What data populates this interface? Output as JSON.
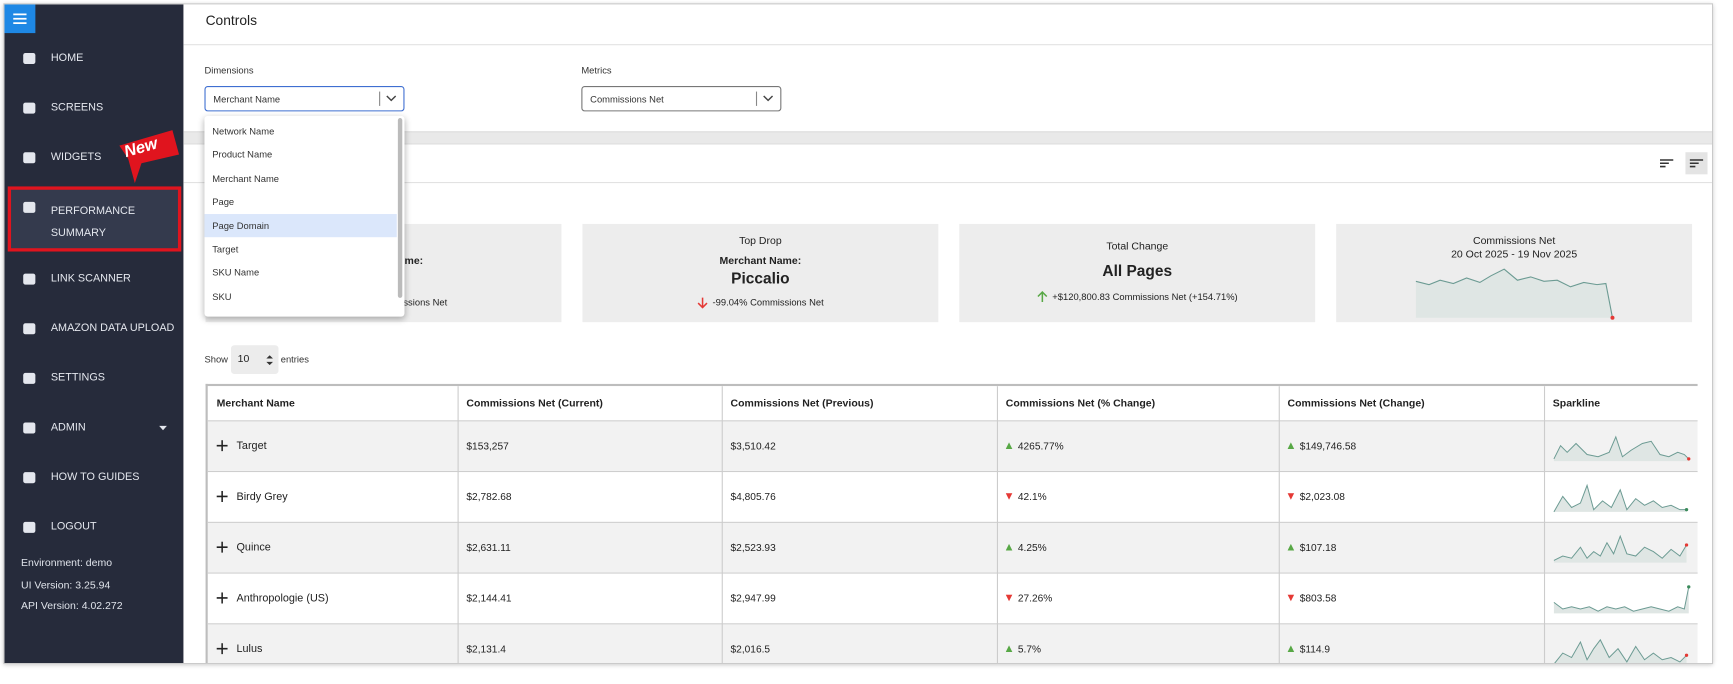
{
  "sidebar": {
    "menu": [
      "HOME",
      "SCREENS",
      "WIDGETS",
      "PERFORMANCE SUMMARY",
      "LINK SCANNER",
      "AMAZON DATA UPLOAD",
      "SETTINGS",
      "ADMIN",
      "HOW TO GUIDES",
      "LOGOUT"
    ],
    "badge": "New",
    "env": [
      "Environment: demo",
      "UI Version: 3.25.94",
      "API Version: 4.02.272"
    ]
  },
  "controls": {
    "title": "Controls",
    "dimensions_label": "Dimensions",
    "dimensions_value": "Merchant Name",
    "metrics_label": "Metrics",
    "metrics_value": "Commissions Net",
    "options": [
      "Network Name",
      "Product Name",
      "Merchant Name",
      "Page",
      "Page Domain",
      "Target",
      "SKU Name",
      "SKU"
    ],
    "highlighted_option": 4
  },
  "cards": [
    {
      "lines": [
        "r",
        "me:",
        "missions Net"
      ]
    },
    {
      "title": "Top Drop",
      "label": "Merchant Name:",
      "value": "Piccalio",
      "change": "-99.04% Commissions Net",
      "trend": "down"
    },
    {
      "title": "Total Change",
      "value": "All Pages",
      "change": "+$120,800.83 Commissions Net (+154.71%)",
      "trend": "up"
    },
    {
      "title": "Commissions Net",
      "subtitle": "20 Oct 2025 - 19 Nov 2025"
    }
  ],
  "show": {
    "prefix": "Show",
    "value": "10",
    "suffix": "entries"
  },
  "table": {
    "headers": [
      "Merchant Name",
      "Commissions Net (Current)",
      "Commissions Net (Previous)",
      "Commissions Net (% Change)",
      "Commissions Net (Change)",
      "Sparkline"
    ],
    "rows": [
      [
        "Target",
        "$153,257",
        "$3,510.42",
        "4265.77%",
        "$149,746.58"
      ],
      [
        "Birdy Grey",
        "$2,782.68",
        "$4,805.76",
        "42.1%",
        "$2,023.08"
      ],
      [
        "Quince",
        "$2,631.11",
        "$2,523.93",
        "4.25%",
        "$107.18"
      ],
      [
        "Anthropologie (US)",
        "$2,144.41",
        "$2,947.99",
        "27.26%",
        "$803.58"
      ],
      [
        "Lulus",
        "$2,131.4",
        "$2,016.5",
        "5.7%",
        "$114.9"
      ]
    ],
    "trends": [
      "up",
      "down",
      "up",
      "down",
      "up"
    ]
  }
}
